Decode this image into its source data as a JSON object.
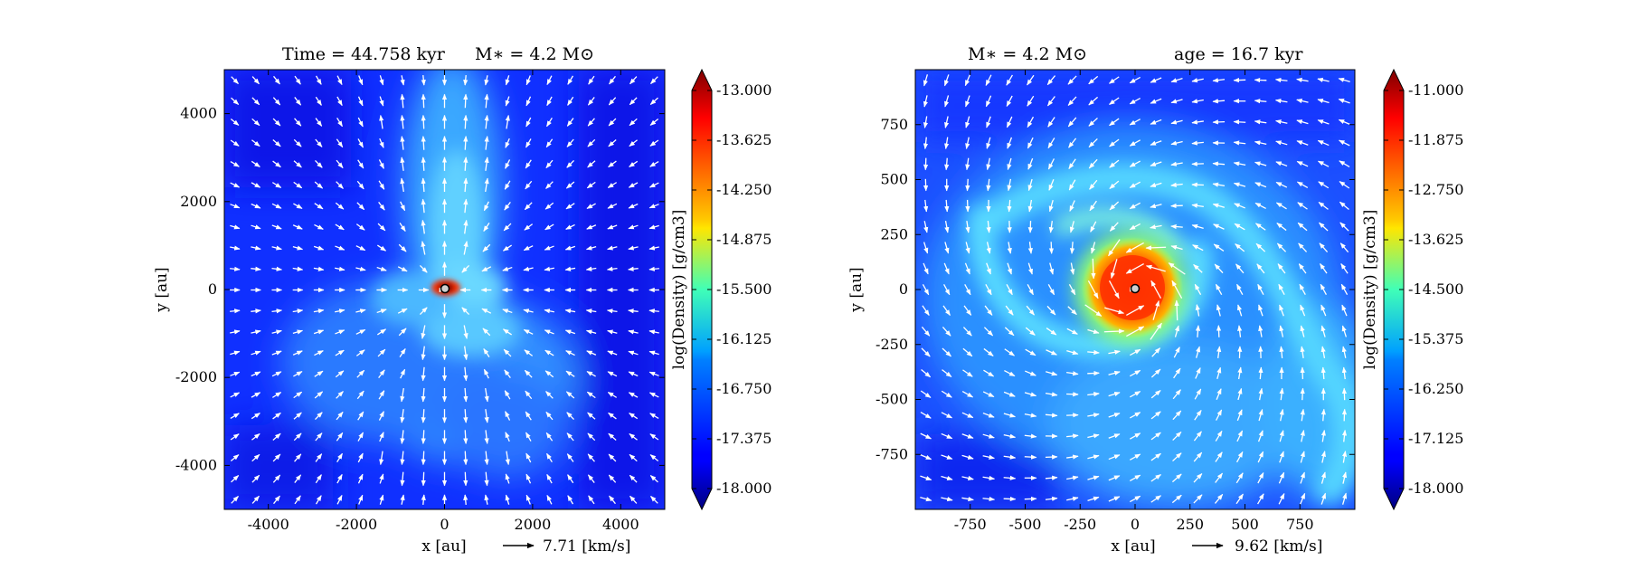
{
  "chart_data": [
    {
      "type": "heatmap",
      "title_left": "Time = 44.758 kyr",
      "title_right": "M$_*$ = 4.2 M$_\\odot$",
      "title_left_text": "Time = 44.758 kyr",
      "title_right_text": "M∗ = 4.2 M⊙",
      "xlabel": "x [au]",
      "ylabel": "y [au]",
      "xlim": [
        -5000,
        5000
      ],
      "ylim": [
        -5000,
        5000
      ],
      "xticks": [
        -4000,
        -2000,
        0,
        2000,
        4000
      ],
      "yticks": [
        -4000,
        -2000,
        0,
        2000,
        4000
      ],
      "xtick_labels": [
        "-4000",
        "-2000",
        "0",
        "2000",
        "4000"
      ],
      "ytick_labels": [
        "-4000",
        "-2000",
        "0",
        "2000",
        "4000"
      ],
      "quiver_key": "7.71 [km/s]",
      "colorbar": {
        "label": "log(Density) [g/cm3]",
        "min": -18.0,
        "max": -13.0,
        "ticks": [
          -13.0,
          -13.625,
          -14.25,
          -14.875,
          -15.5,
          -16.125,
          -16.75,
          -17.375,
          -18.0
        ],
        "tick_labels": [
          "-13.000",
          "-13.625",
          "-14.250",
          "-14.875",
          "-15.500",
          "-16.125",
          "-16.750",
          "-17.375",
          "-18.000"
        ]
      },
      "structure": "bipolar outflow cavity along the y axis; dense disk at origin; velocities point inward",
      "star_position": [
        0,
        0
      ]
    },
    {
      "type": "heatmap",
      "title_left": "M$_*$ = 4.2 M$_\\odot$",
      "title_right": "age = 16.7 kyr",
      "title_left_text": "M∗ = 4.2 M⊙",
      "title_right_text": "age = 16.7 kyr",
      "xlabel": "x [au]",
      "ylabel": "y [au]",
      "xlim": [
        -1000,
        1000
      ],
      "ylim": [
        -1000,
        1000
      ],
      "xticks": [
        -750,
        -500,
        -250,
        0,
        250,
        500,
        750
      ],
      "yticks": [
        -750,
        -500,
        -250,
        0,
        250,
        500,
        750
      ],
      "xtick_labels": [
        "-750",
        "-500",
        "-250",
        "0",
        "250",
        "500",
        "750"
      ],
      "ytick_labels": [
        "-750",
        "-500",
        "-250",
        "0",
        "250",
        "500",
        "750"
      ],
      "quiver_key": "9.62 [km/s]",
      "colorbar": {
        "label": "log(Density) [g/cm3]",
        "min": -18.0,
        "max": -11.0,
        "ticks": [
          -11.0,
          -11.875,
          -12.75,
          -13.625,
          -14.5,
          -15.375,
          -16.25,
          -17.125,
          -18.0
        ],
        "tick_labels": [
          "-11.000",
          "-11.875",
          "-12.750",
          "-13.625",
          "-14.500",
          "-15.375",
          "-16.250",
          "-17.125",
          "-18.000"
        ]
      },
      "structure": "dense rotating disk at origin with two spiral arms; velocities circulate around the star",
      "star_position": [
        0,
        0
      ]
    }
  ]
}
